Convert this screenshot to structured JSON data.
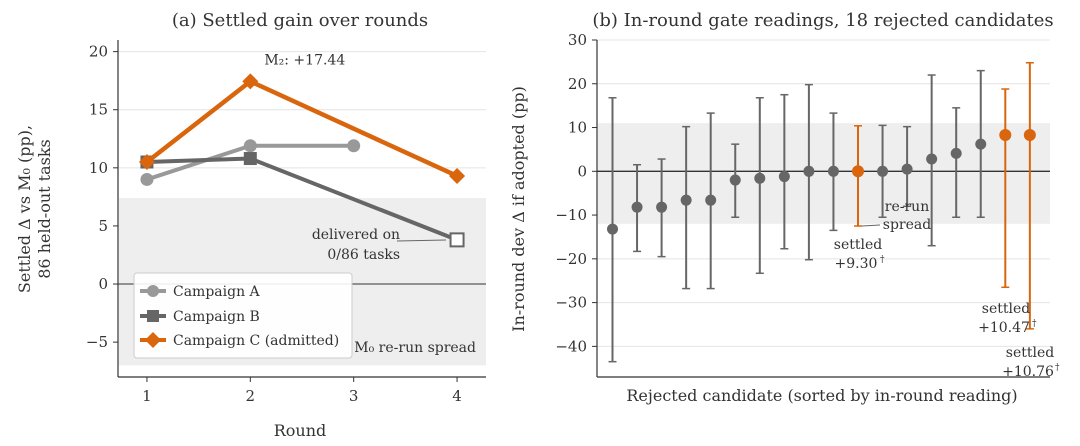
{
  "colors": {
    "campaign_a": "#999999",
    "campaign_b": "#666666",
    "campaign_c": "#d9650d",
    "rejected": "#666666",
    "band": "#eeeeee"
  },
  "chart_data": [
    {
      "type": "line",
      "title": "(a) Settled gain over rounds",
      "xlabel": "Round",
      "ylabel_line1": "Settled Δ vs M₀ (pp),",
      "ylabel_line2": "86 held-out tasks",
      "xticks": [
        1,
        2,
        3,
        4
      ],
      "yticks": [
        -5,
        0,
        5,
        10,
        15,
        20
      ],
      "ytick_labels": [
        "−5",
        "0",
        "5",
        "10",
        "15",
        "20"
      ],
      "xlim": [
        0.72,
        4.28
      ],
      "ylim": [
        -8,
        21
      ],
      "grid": "horizontal",
      "band": {
        "lower": -7,
        "upper": 7.4,
        "label": "M₀ re-run spread"
      },
      "legend_position": "bottom-left",
      "series": [
        {
          "name": "Campaign A",
          "marker": "circle",
          "x": [
            1,
            2,
            3
          ],
          "y": [
            9.0,
            11.9,
            11.9
          ]
        },
        {
          "name": "Campaign B",
          "marker": "square",
          "x": [
            1,
            2,
            4
          ],
          "y": [
            10.5,
            10.8,
            3.8
          ]
        },
        {
          "name": "Campaign C (admitted)",
          "marker": "diamond",
          "x": [
            1,
            2,
            4
          ],
          "y": [
            10.5,
            17.44,
            9.3
          ]
        }
      ],
      "annotations": [
        {
          "text": "M₂: +17.44",
          "x": 2,
          "y": 17.44
        },
        {
          "text_lines": [
            "delivered on",
            "0/86 tasks"
          ],
          "x": 4,
          "y": 3.8
        }
      ]
    },
    {
      "type": "errorbar",
      "title": "(b) In-round gate readings, 18 rejected candidates",
      "xlabel": "Rejected candidate (sorted by in-round reading)",
      "ylabel": "In-round dev Δ if adopted (pp)",
      "yticks": [
        -40,
        -30,
        -20,
        -10,
        0,
        10,
        20,
        30
      ],
      "ytick_labels": [
        "−40",
        "−30",
        "−20",
        "−10",
        "0",
        "10",
        "20",
        "30"
      ],
      "ylim": [
        -47,
        30
      ],
      "grid": "horizontal",
      "band": {
        "lower": -12,
        "upper": 11
      },
      "zero_line": true,
      "points": [
        {
          "y": -13.2,
          "lo": -43.5,
          "hi": 16.8,
          "highlight": false
        },
        {
          "y": -8.2,
          "lo": -18.3,
          "hi": 1.5,
          "highlight": false
        },
        {
          "y": -8.2,
          "lo": -19.5,
          "hi": 2.8,
          "highlight": false
        },
        {
          "y": -6.6,
          "lo": -26.8,
          "hi": 10.2,
          "highlight": false
        },
        {
          "y": -6.6,
          "lo": -26.8,
          "hi": 13.3,
          "highlight": false
        },
        {
          "y": -2.0,
          "lo": -10.5,
          "hi": 6.2,
          "highlight": false
        },
        {
          "y": -1.6,
          "lo": -23.3,
          "hi": 16.8,
          "highlight": false
        },
        {
          "y": -1.2,
          "lo": -17.7,
          "hi": 17.5,
          "highlight": false
        },
        {
          "y": 0.0,
          "lo": -20.2,
          "hi": 19.8,
          "highlight": false
        },
        {
          "y": 0.0,
          "lo": -13.5,
          "hi": 13.3,
          "highlight": false
        },
        {
          "y": 0.0,
          "lo": -12.5,
          "hi": 10.4,
          "highlight": true
        },
        {
          "y": 0.0,
          "lo": -10.5,
          "hi": 10.5,
          "highlight": false
        },
        {
          "y": 0.5,
          "lo": -8.0,
          "hi": 10.2,
          "highlight": false
        },
        {
          "y": 2.8,
          "lo": -17.0,
          "hi": 22.0,
          "highlight": false
        },
        {
          "y": 4.1,
          "lo": -10.5,
          "hi": 14.5,
          "highlight": false
        },
        {
          "y": 6.2,
          "lo": -10.5,
          "hi": 23.0,
          "highlight": false
        },
        {
          "y": 8.3,
          "lo": -26.5,
          "hi": 18.8,
          "highlight": true
        },
        {
          "y": 8.3,
          "lo": -36.0,
          "hi": 24.8,
          "highlight": true
        }
      ],
      "annotations": {
        "rerun_line1": "re-run",
        "rerun_line2": "spread",
        "settled_a_line1": "settled",
        "settled_a_line2": "+9.30",
        "settled_b_line1": "settled",
        "settled_b_line2": "+10.47",
        "settled_c_line1": "settled",
        "settled_c_line2": "+10.76",
        "dagger": "†"
      }
    }
  ]
}
